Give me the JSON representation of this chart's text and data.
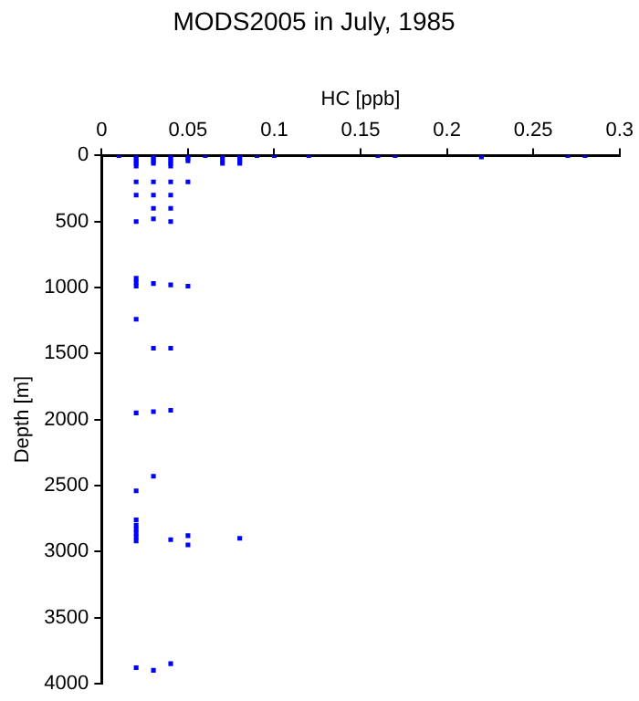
{
  "chart_data": {
    "type": "scatter",
    "title": "MODS2005 in July, 1985",
    "xlabel": "HC [ppb]",
    "ylabel": "Depth [m]",
    "xlim": [
      0,
      0.3
    ],
    "xticks": [
      0,
      0.05,
      0.1,
      0.15,
      0.2,
      0.25,
      0.3
    ],
    "ylim": [
      4000,
      0
    ],
    "yticks": [
      0,
      500,
      1000,
      1500,
      2000,
      2500,
      3000,
      3500,
      4000
    ],
    "grid": false,
    "legend": false,
    "marker": "square",
    "series": [
      {
        "color": "#0000ff",
        "x": [
          0.01,
          0.02,
          0.03,
          0.04,
          0.05,
          0.06,
          0.07,
          0.08,
          0.09,
          0.1,
          0.12,
          0.16,
          0.17,
          0.22,
          0.27,
          0.28,
          0.02,
          0.02,
          0.02,
          0.02,
          0.03,
          0.03,
          0.03,
          0.04,
          0.04,
          0.04,
          0.04,
          0.05,
          0.05,
          0.07,
          0.07,
          0.08,
          0.08,
          0.08,
          0.02,
          0.03,
          0.04,
          0.05,
          0.02,
          0.03,
          0.04,
          0.03,
          0.04,
          0.02,
          0.03,
          0.04,
          0.02,
          0.02,
          0.02,
          0.03,
          0.04,
          0.05,
          0.02,
          0.03,
          0.04,
          0.02,
          0.03,
          0.04,
          0.03,
          0.02,
          0.02,
          0.02,
          0.02,
          0.02,
          0.02,
          0.02,
          0.04,
          0.05,
          0.05,
          0.08,
          0.04,
          0.02,
          0.03
        ],
        "values": [
          0,
          0,
          0,
          0,
          0,
          0,
          0,
          0,
          0,
          0,
          0,
          0,
          0,
          10,
          0,
          0,
          20,
          40,
          60,
          80,
          20,
          40,
          60,
          20,
          40,
          60,
          80,
          20,
          40,
          30,
          60,
          20,
          40,
          60,
          200,
          200,
          200,
          200,
          300,
          300,
          300,
          400,
          400,
          500,
          480,
          500,
          930,
          960,
          990,
          970,
          980,
          990,
          1240,
          1460,
          1460,
          1950,
          1940,
          1930,
          2430,
          2540,
          2760,
          2800,
          2830,
          2860,
          2890,
          2920,
          2910,
          2880,
          2950,
          2900,
          3850,
          3880,
          3900
        ]
      }
    ]
  }
}
